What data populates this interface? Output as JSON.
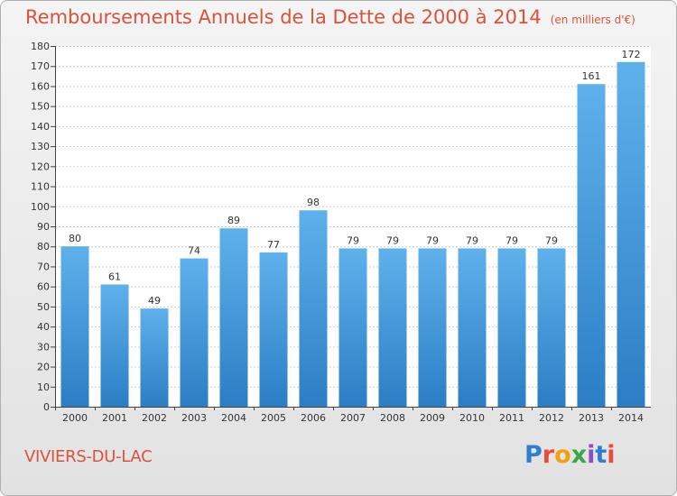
{
  "chart_data": {
    "type": "bar",
    "title": "Remboursements Annuels de la Dette de 2000 à 2014",
    "subtitle": "(en milliers d'€)",
    "categories": [
      "2000",
      "2001",
      "2002",
      "2003",
      "2004",
      "2005",
      "2006",
      "2007",
      "2008",
      "2009",
      "2010",
      "2011",
      "2012",
      "2013",
      "2014"
    ],
    "values": [
      80,
      61,
      49,
      74,
      89,
      77,
      98,
      79,
      79,
      79,
      79,
      79,
      79,
      161,
      172
    ],
    "ylim": [
      0,
      180
    ],
    "yticks": [
      0,
      10,
      20,
      30,
      40,
      50,
      60,
      70,
      80,
      90,
      100,
      110,
      120,
      130,
      140,
      150,
      160,
      170,
      180
    ],
    "grid": true,
    "xlabel": "",
    "ylabel": ""
  },
  "footer": {
    "commune": "VIVIERS-DU-LAC",
    "logo_text": "Proxiti"
  },
  "colors": {
    "title": "#d9533c",
    "bar_top": "#5fb1ec",
    "bar_bottom": "#2b7ec4",
    "logo": [
      "#2f7fd0",
      "#e84c3d",
      "#f0a20e",
      "#3aa84a",
      "#8a4fc0",
      "#2f7fd0",
      "#e84c3d"
    ]
  }
}
